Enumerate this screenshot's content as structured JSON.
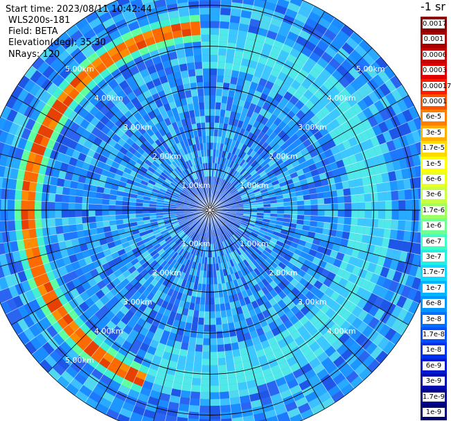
{
  "header": {
    "start_time": "Start time: 2023/08/11 10:42:44",
    "instrument": "WLS200s-181",
    "field": "Field: BETA",
    "elevation": "Elevation(deg): 35.30",
    "nrays": "NRays: 120"
  },
  "legend": {
    "unit_title": "-1 sr",
    "entries": [
      {
        "label": "0.0017",
        "color": "#8c0000"
      },
      {
        "label": "0.001",
        "color": "#a80000"
      },
      {
        "label": "0.0006",
        "color": "#c40000"
      },
      {
        "label": "0.0003",
        "color": "#e00000"
      },
      {
        "label": "0.00017",
        "color": "#ff1a00"
      },
      {
        "label": "0.0001",
        "color": "#ff5000"
      },
      {
        "label": "6e-5",
        "color": "#ff8000"
      },
      {
        "label": "3e-5",
        "color": "#ffae00"
      },
      {
        "label": "1.7e-5",
        "color": "#ffd800"
      },
      {
        "label": "1e-5",
        "color": "#ffff00"
      },
      {
        "label": "6e-6",
        "color": "#e8ff20"
      },
      {
        "label": "3e-6",
        "color": "#c8ff40"
      },
      {
        "label": "1.7e-6",
        "color": "#a0ff60"
      },
      {
        "label": "1e-6",
        "color": "#70ff90"
      },
      {
        "label": "6e-7",
        "color": "#40ffc0"
      },
      {
        "label": "3e-7",
        "color": "#20f0e0"
      },
      {
        "label": "1.7e-7",
        "color": "#10d8ff"
      },
      {
        "label": "1e-7",
        "color": "#00b4ff"
      },
      {
        "label": "6e-8",
        "color": "#0094ff"
      },
      {
        "label": "3e-8",
        "color": "#0070ff"
      },
      {
        "label": "1.7e-8",
        "color": "#0050ff"
      },
      {
        "label": "1e-8",
        "color": "#0030f0"
      },
      {
        "label": "6e-9",
        "color": "#0018d0"
      },
      {
        "label": "3e-9",
        "color": "#0008b0"
      },
      {
        "label": "1.7e-9",
        "color": "#000090"
      },
      {
        "label": "1e-9",
        "color": "#000070"
      }
    ]
  },
  "range_rings_km": [
    1,
    2,
    3,
    4,
    5
  ],
  "range_labels": {
    "km1": "1.00km",
    "km2": "2.00km",
    "km3": "3.00km",
    "km4": "4.00km",
    "km5": "5.00km"
  },
  "max_range_km": 5.6,
  "nrays": 120,
  "colors": {
    "background_field": "#1e90ff",
    "aerosol_layer": "#ff6a00",
    "grid_lines": "#000000"
  }
}
